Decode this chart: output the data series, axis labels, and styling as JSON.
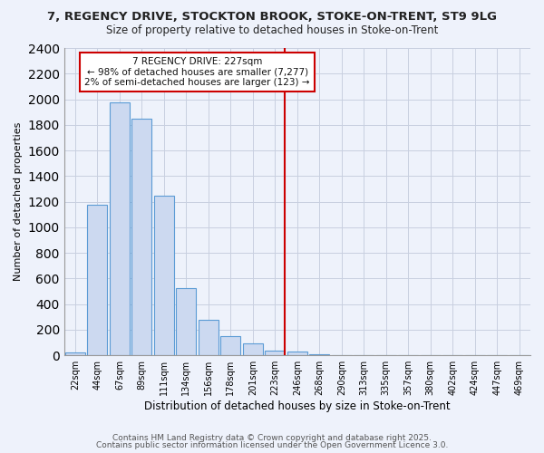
{
  "title": "7, REGENCY DRIVE, STOCKTON BROOK, STOKE-ON-TRENT, ST9 9LG",
  "subtitle": "Size of property relative to detached houses in Stoke-on-Trent",
  "xlabel": "Distribution of detached houses by size in Stoke-on-Trent",
  "ylabel": "Number of detached properties",
  "annotation_title": "7 REGENCY DRIVE: 227sqm",
  "annotation_line1": "← 98% of detached houses are smaller (7,277)",
  "annotation_line2": "2% of semi-detached houses are larger (123) →",
  "bar_color": "#ccd9f0",
  "bar_edge_color": "#5b9bd5",
  "marker_line_color": "#cc0000",
  "annotation_box_color": "#ffffff",
  "annotation_box_edge": "#cc0000",
  "background_color": "#eef2fb",
  "plot_bg_color": "#eef2fb",
  "ylim": [
    0,
    2400
  ],
  "yticks": [
    0,
    200,
    400,
    600,
    800,
    1000,
    1200,
    1400,
    1600,
    1800,
    2000,
    2200,
    2400
  ],
  "categories": [
    "22sqm",
    "44sqm",
    "67sqm",
    "89sqm",
    "111sqm",
    "134sqm",
    "156sqm",
    "178sqm",
    "201sqm",
    "223sqm",
    "246sqm",
    "268sqm",
    "290sqm",
    "313sqm",
    "335sqm",
    "357sqm",
    "380sqm",
    "402sqm",
    "424sqm",
    "447sqm",
    "469sqm"
  ],
  "values": [
    25,
    1175,
    1975,
    1850,
    1250,
    525,
    275,
    150,
    90,
    40,
    30,
    10,
    5,
    3,
    2,
    1,
    1,
    1,
    1,
    1,
    1
  ],
  "marker_index": 9,
  "footer1": "Contains HM Land Registry data © Crown copyright and database right 2025.",
  "footer2": "Contains public sector information licensed under the Open Government Licence 3.0."
}
